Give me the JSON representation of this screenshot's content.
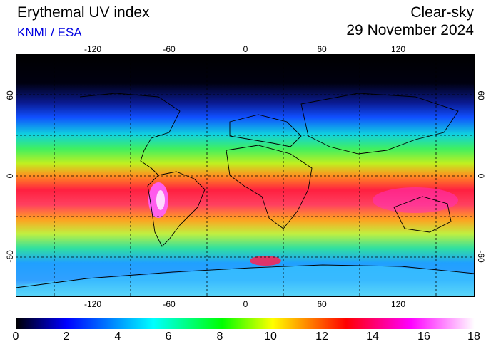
{
  "header": {
    "title": "Erythemal UV index",
    "source": "KNMI / ESA",
    "mode": "Clear-sky",
    "date": "29 November 2024"
  },
  "map": {
    "lon_ticks": [
      "-120",
      "-60",
      "0",
      "60",
      "120"
    ],
    "lat_ticks": [
      "60",
      "0",
      "-60"
    ],
    "grid": true,
    "projection": "equirectangular"
  },
  "colorbar": {
    "labels": [
      "0",
      "2",
      "4",
      "6",
      "8",
      "10",
      "12",
      "14",
      "16",
      "18"
    ],
    "range": [
      0,
      18
    ],
    "colors": [
      "#000000",
      "#0000ff",
      "#00ffff",
      "#00ff00",
      "#ffff00",
      "#ff0000",
      "#ff00ff",
      "#ffffff"
    ]
  }
}
